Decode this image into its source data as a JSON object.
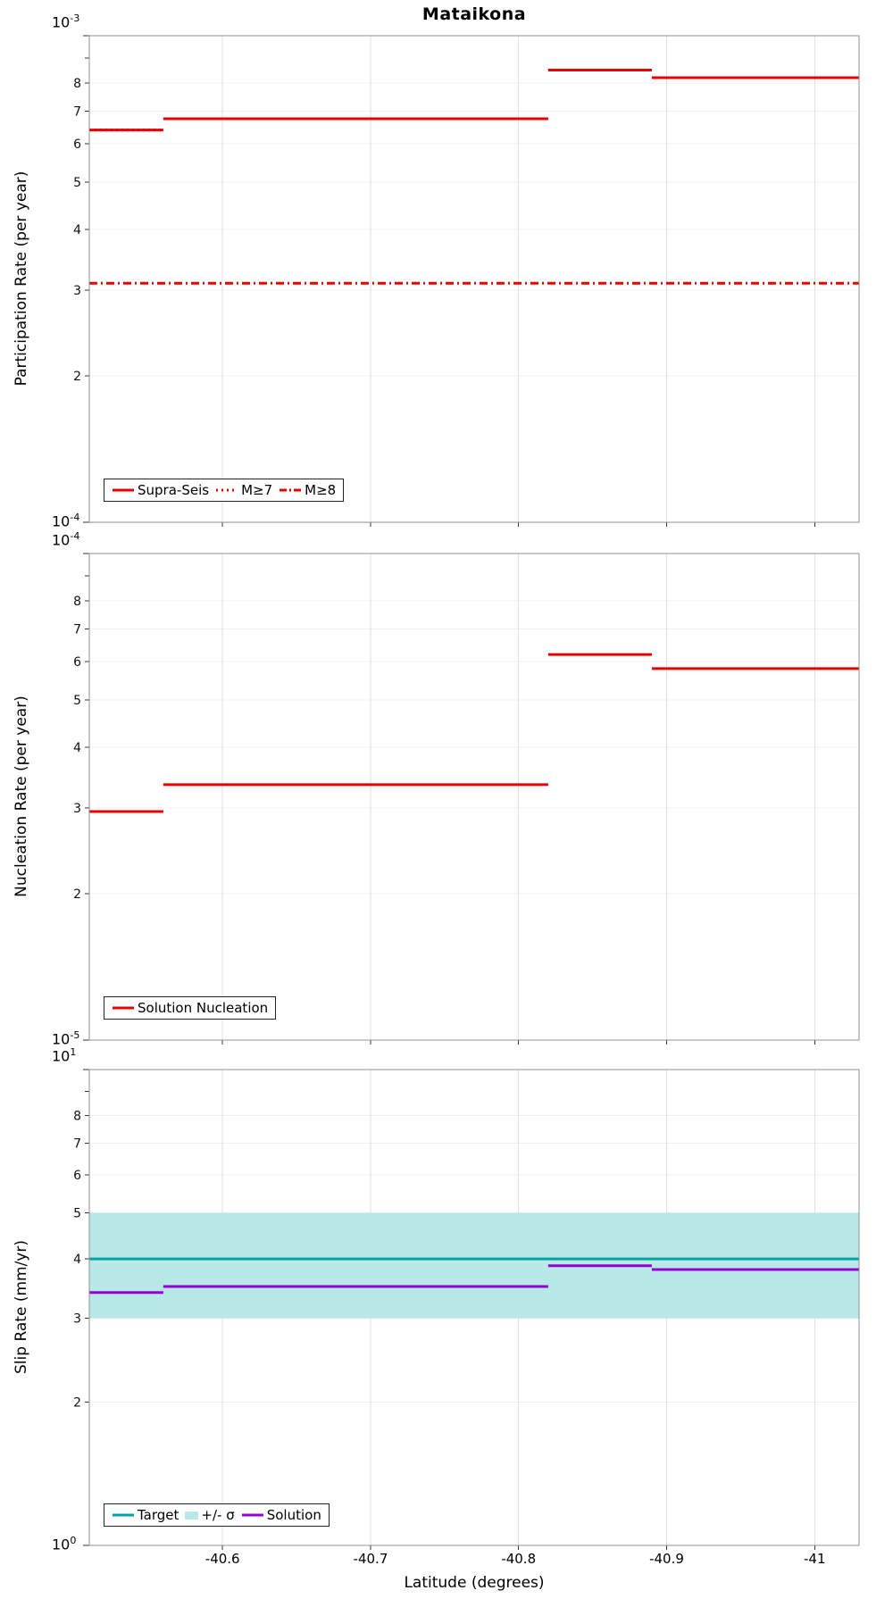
{
  "title": "Mataikona",
  "colors": {
    "line_red": "#e60000",
    "target_teal": "#00a3a3",
    "sigma_band": "#b9e8e8",
    "solution_purple": "#9400d3",
    "grid_v": "#e0e0e0",
    "grid_h": "#f0f0f0",
    "frame": "#8f8f8f",
    "tick": "#333333"
  },
  "x_axis": {
    "label": "Latitude (degrees)",
    "lim": [
      -40.51,
      -41.03
    ],
    "ticks": [
      -40.6,
      -40.7,
      -40.8,
      -40.9,
      -41.0
    ],
    "tick_labels": [
      "-40.6",
      "-40.7",
      "-40.8",
      "-40.9",
      "-41"
    ]
  },
  "chart_data": [
    {
      "type": "line",
      "name": "participation",
      "ylabel": "Participation Rate (per year)",
      "yscale": "log",
      "ylim": [
        0.0001,
        0.001
      ],
      "ytop": {
        "base": "10",
        "exp": "-3"
      },
      "ybottom": {
        "base": "10",
        "exp": "-4"
      },
      "yticks_minor": [
        2,
        3,
        4,
        5,
        6,
        7,
        8
      ],
      "x_edges": [
        -40.51,
        -40.56,
        -40.82,
        -40.89,
        -41.03
      ],
      "legend_loc": "lower left",
      "series": [
        {
          "name": "Supra-Seis",
          "kind": "steps",
          "style": "solid",
          "color": "line_red",
          "values": [
            0.00064,
            0.000675,
            0.00085,
            0.00082
          ]
        },
        {
          "name": "M≥7",
          "kind": "steps",
          "style": "dotted",
          "color": "line_red",
          "values": [
            0.00064,
            0.000675,
            0.00085,
            0.00082
          ]
        },
        {
          "name": "M≥8",
          "kind": "constant",
          "style": "dashdot",
          "color": "line_red",
          "value": 0.00031
        }
      ]
    },
    {
      "type": "line",
      "name": "nucleation",
      "ylabel": "Nucleation Rate (per year)",
      "yscale": "log",
      "ylim": [
        1e-05,
        0.0001
      ],
      "ytop": {
        "base": "10",
        "exp": "-4"
      },
      "ybottom": {
        "base": "10",
        "exp": "-5"
      },
      "yticks_minor": [
        2,
        3,
        4,
        5,
        6,
        7,
        8
      ],
      "x_edges": [
        -40.51,
        -40.56,
        -40.82,
        -40.89,
        -41.03
      ],
      "legend_loc": "lower left",
      "series": [
        {
          "name": "Solution Nucleation",
          "kind": "steps",
          "style": "solid",
          "color": "line_red",
          "values": [
            2.95e-05,
            3.35e-05,
            6.2e-05,
            5.8e-05
          ]
        }
      ]
    },
    {
      "type": "line",
      "name": "slip-rate",
      "ylabel": "Slip Rate (mm/yr)",
      "yscale": "log",
      "ylim": [
        1,
        10
      ],
      "ytop": {
        "base": "10",
        "exp": "1"
      },
      "ybottom": {
        "base": "10",
        "exp": "0"
      },
      "yticks_minor": [
        2,
        3,
        4,
        5,
        6,
        7,
        8
      ],
      "x_edges": [
        -40.51,
        -40.56,
        -40.82,
        -40.89,
        -41.03
      ],
      "legend_loc": "lower left",
      "series": [
        {
          "name": "+/- σ",
          "kind": "band",
          "color": "sigma_band",
          "range": [
            3.0,
            5.0
          ]
        },
        {
          "name": "Target",
          "kind": "constant",
          "style": "solid",
          "color": "target_teal",
          "value": 4.0
        },
        {
          "name": "Solution",
          "kind": "steps",
          "style": "solid",
          "color": "solution_purple",
          "values": [
            3.4,
            3.5,
            3.87,
            3.8
          ]
        }
      ]
    }
  ]
}
